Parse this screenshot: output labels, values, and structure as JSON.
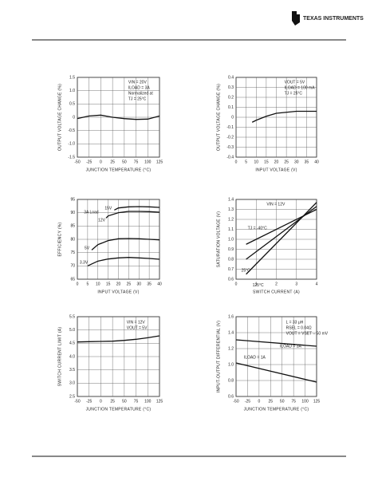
{
  "header": {
    "brand": "TEXAS INSTRUMENTS"
  },
  "chart_data": [
    {
      "type": "line",
      "xlabel": "JUNCTION TEMPERATURE (°C)",
      "ylabel": "OUTPUT VOLTAGE CHANGE (%)",
      "xlim": [
        -50,
        125
      ],
      "xticks": [
        -50,
        -25,
        0,
        25,
        50,
        75,
        100,
        125
      ],
      "ylim": [
        -1.5,
        1.5
      ],
      "yticks": [
        1.5,
        {
          "value": 1,
          "label": "1.0"
        },
        0.5,
        0,
        -0.5,
        {
          "value": -1,
          "label": "-1.0"
        },
        -1.5
      ],
      "grid": true,
      "annotations": [
        "VIN = 20V",
        "ILOAD = 3A",
        "Normalized at",
        "TJ = 25°C"
      ],
      "series": [
        {
          "color": "#111",
          "x": [
            -50,
            -25,
            0,
            25,
            50,
            75,
            100,
            125
          ],
          "values": [
            -0.05,
            0.05,
            0.08,
            0,
            -0.05,
            -0.08,
            -0.07,
            0.05
          ]
        }
      ]
    },
    {
      "type": "line",
      "xlabel": "INPUT VOLTAGE (V)",
      "ylabel": "OUTPUT VOLTAGE CHANGE (%)",
      "xlim": [
        0,
        40
      ],
      "xticks": [
        0,
        5,
        10,
        15,
        20,
        25,
        30,
        35,
        40
      ],
      "ylim": [
        -0.4,
        0.4
      ],
      "yticks": [
        0.4,
        0.3,
        0.2,
        0.1,
        0,
        -0.1,
        -0.2,
        -0.3,
        -0.4
      ],
      "grid": true,
      "annotations": [
        "VOUT = 5V",
        "ILOAD = 100 mA",
        "TJ = 25°C"
      ],
      "series": [
        {
          "color": "#111",
          "x": [
            8,
            10,
            15,
            20,
            25,
            30,
            35,
            40
          ],
          "values": [
            -0.05,
            -0.03,
            0.01,
            0.04,
            0.05,
            0.06,
            0.06,
            0.06
          ]
        }
      ]
    },
    {
      "type": "line",
      "xlabel": "INPUT VOLTAGE (V)",
      "ylabel": "EFFICIENCY (%)",
      "xlim": [
        0,
        40
      ],
      "xticks": [
        0,
        5,
        10,
        15,
        20,
        25,
        30,
        35,
        40
      ],
      "ylim": [
        65,
        95
      ],
      "yticks": [
        95,
        90,
        85,
        80,
        75,
        70,
        65
      ],
      "grid": true,
      "annotations": [
        "3A Load"
      ],
      "series": [
        {
          "name": "15V",
          "color": "#111",
          "x": [
            18,
            20,
            25,
            30,
            35,
            40
          ],
          "values": [
            91,
            91.8,
            92.2,
            92.3,
            92.2,
            92
          ]
        },
        {
          "name": "12V",
          "color": "#111",
          "x": [
            14,
            15,
            20,
            25,
            30,
            35,
            40
          ],
          "values": [
            88,
            88.8,
            90,
            90.5,
            90.5,
            90.4,
            90.2
          ]
        },
        {
          "name": "5V",
          "color": "#111",
          "x": [
            7,
            10,
            15,
            20,
            25,
            30,
            35,
            40
          ],
          "values": [
            76,
            78,
            79.5,
            80.2,
            80.3,
            80.2,
            80,
            79.8
          ]
        },
        {
          "name": "3.3V",
          "color": "#111",
          "x": [
            5,
            10,
            15,
            20,
            25,
            30,
            35,
            40
          ],
          "values": [
            70,
            71.8,
            72.6,
            73,
            73.2,
            73,
            72.8,
            72.5
          ]
        }
      ]
    },
    {
      "type": "line",
      "xlabel": "SWITCH CURRENT (A)",
      "ylabel": "SATURATION VOLTAGE (V)",
      "xlim": [
        0,
        4
      ],
      "xticks": [
        0,
        1,
        2,
        3,
        4
      ],
      "ylim": [
        0.6,
        1.4
      ],
      "yticks": [
        1.4,
        1.3,
        1.2,
        1.1,
        {
          "value": 1,
          "label": "1.0"
        },
        0.9,
        0.8,
        0.7,
        0.6
      ],
      "grid": true,
      "annotations": [
        "VIN = 12V"
      ],
      "series": [
        {
          "name": "TJ = -40°C",
          "color": "#111",
          "x": [
            0.5,
            4
          ],
          "values": [
            0.95,
            1.3
          ]
        },
        {
          "name": "25°C",
          "color": "#111",
          "x": [
            0.5,
            4
          ],
          "values": [
            0.8,
            1.33
          ]
        },
        {
          "name": "125°C",
          "color": "#111",
          "x": [
            0.5,
            4
          ],
          "values": [
            0.65,
            1.37
          ]
        }
      ]
    },
    {
      "type": "line",
      "xlabel": "JUNCTION TEMPERATURE (°C)",
      "ylabel": "SWITCH CURRENT LIMIT (A)",
      "xlim": [
        -50,
        125
      ],
      "xticks": [
        -50,
        -25,
        0,
        25,
        50,
        75,
        100,
        125
      ],
      "ylim": [
        2.5,
        5.5
      ],
      "yticks": [
        5.5,
        {
          "value": 5,
          "label": "5.0"
        },
        4.5,
        {
          "value": 4,
          "label": "4.0"
        },
        3.5,
        {
          "value": 3,
          "label": "3.0"
        },
        2.5
      ],
      "grid": true,
      "annotations": [
        "VIN = 12V",
        "VOUT = 5V"
      ],
      "series": [
        {
          "color": "#111",
          "x": [
            -50,
            -25,
            0,
            25,
            50,
            75,
            100,
            125
          ],
          "values": [
            4.55,
            4.56,
            4.57,
            4.58,
            4.61,
            4.65,
            4.71,
            4.78
          ]
        }
      ]
    },
    {
      "type": "line",
      "xlabel": "JUNCTION TEMPERATURE (°C)",
      "ylabel": "INPUT-OUTPUT DIFFERENTIAL (V)",
      "xlim": [
        -50,
        125
      ],
      "xticks": [
        -50,
        -25,
        0,
        25,
        50,
        75,
        100,
        125
      ],
      "ylim": [
        0.6,
        1.6
      ],
      "yticks": [
        1.6,
        1.4,
        1.2,
        {
          "value": 1,
          "label": "1.0"
        },
        0.8,
        0.6
      ],
      "grid": true,
      "annotations": [
        "L = 33 μH",
        "RSEL = 0.04Ω",
        "VOUT = VSET – 50 mV"
      ],
      "series": [
        {
          "name": "ILOAD = 3A",
          "color": "#111",
          "x": [
            -50,
            125
          ],
          "values": [
            1.31,
            1.23
          ]
        },
        {
          "name": "ILOAD = 1A",
          "color": "#111",
          "x": [
            -50,
            125
          ],
          "values": [
            1.02,
            0.78
          ]
        }
      ]
    }
  ]
}
